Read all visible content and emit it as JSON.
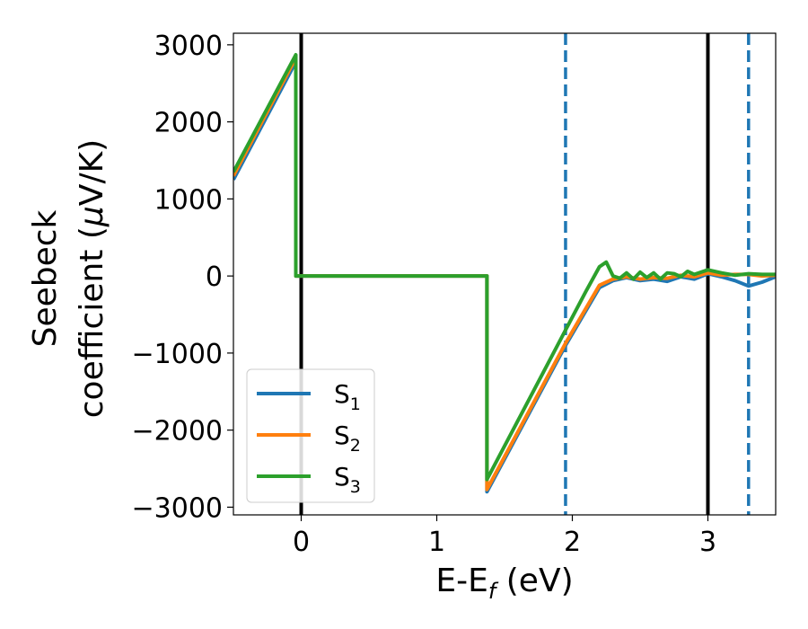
{
  "chart_data": {
    "type": "line",
    "xlabel": "E-E",
    "xlabel_sub": "f",
    "xlabel_unit": " (eV)",
    "ylabel_line1": "Seebeck",
    "ylabel_line2": "coefficient  (",
    "ylabel_mu": "μ",
    "ylabel_unit": "V/K)",
    "xlim": [
      -0.5,
      3.5
    ],
    "ylim": [
      -3100,
      3150
    ],
    "xticks": [
      0,
      1,
      2,
      3
    ],
    "xtick_labels": [
      "0",
      "1",
      "2",
      "3"
    ],
    "yticks": [
      3000,
      2000,
      1000,
      0,
      -1000,
      -2000,
      -3000
    ],
    "ytick_labels": [
      "3000",
      "2000",
      "1000",
      "0",
      "−1000",
      "−2000",
      "−3000"
    ],
    "grid": false,
    "legend_position": "lower-left",
    "vertical_lines": [
      {
        "x": 0.0,
        "style": "solid",
        "color": "#000000"
      },
      {
        "x": 3.0,
        "style": "solid",
        "color": "#000000"
      },
      {
        "x": 1.95,
        "style": "dashed",
        "color": "#1f77b4"
      },
      {
        "x": 3.3,
        "style": "dashed",
        "color": "#1f77b4"
      }
    ],
    "series": [
      {
        "name": "S",
        "sub": "1",
        "color": "#1f77b4",
        "points": [
          [
            -0.5,
            1250
          ],
          [
            -0.04,
            2780
          ],
          [
            -0.04,
            0
          ],
          [
            1.37,
            0
          ],
          [
            1.37,
            -2800
          ],
          [
            1.95,
            -900
          ],
          [
            2.2,
            -150
          ],
          [
            2.3,
            -60
          ],
          [
            2.4,
            -20
          ],
          [
            2.5,
            -60
          ],
          [
            2.6,
            -40
          ],
          [
            2.7,
            -70
          ],
          [
            2.8,
            -10
          ],
          [
            2.9,
            -40
          ],
          [
            3.0,
            30
          ],
          [
            3.1,
            -10
          ],
          [
            3.2,
            -60
          ],
          [
            3.3,
            -130
          ],
          [
            3.4,
            -80
          ],
          [
            3.5,
            -10
          ]
        ]
      },
      {
        "name": "S",
        "sub": "2",
        "color": "#ff7f0e",
        "points": [
          [
            -0.5,
            1300
          ],
          [
            -0.04,
            2830
          ],
          [
            -0.04,
            0
          ],
          [
            1.37,
            0
          ],
          [
            1.37,
            -2770
          ],
          [
            1.95,
            -870
          ],
          [
            2.2,
            -120
          ],
          [
            2.3,
            -40
          ],
          [
            2.4,
            -10
          ],
          [
            2.5,
            -40
          ],
          [
            2.6,
            -20
          ],
          [
            2.7,
            -30
          ],
          [
            2.8,
            10
          ],
          [
            2.9,
            -10
          ],
          [
            3.0,
            40
          ],
          [
            3.1,
            10
          ],
          [
            3.2,
            20
          ],
          [
            3.3,
            20
          ],
          [
            3.4,
            0
          ],
          [
            3.5,
            10
          ]
        ]
      },
      {
        "name": "S",
        "sub": "3",
        "color": "#2ca02c",
        "points": [
          [
            -0.5,
            1350
          ],
          [
            -0.04,
            2870
          ],
          [
            -0.04,
            0
          ],
          [
            1.37,
            0
          ],
          [
            1.37,
            -2640
          ],
          [
            1.95,
            -700
          ],
          [
            2.1,
            -200
          ],
          [
            2.2,
            120
          ],
          [
            2.25,
            180
          ],
          [
            2.3,
            0
          ],
          [
            2.35,
            -30
          ],
          [
            2.4,
            40
          ],
          [
            2.45,
            -40
          ],
          [
            2.5,
            50
          ],
          [
            2.55,
            -20
          ],
          [
            2.6,
            40
          ],
          [
            2.65,
            -40
          ],
          [
            2.7,
            40
          ],
          [
            2.75,
            30
          ],
          [
            2.8,
            -10
          ],
          [
            2.85,
            60
          ],
          [
            2.9,
            20
          ],
          [
            3.0,
            80
          ],
          [
            3.1,
            40
          ],
          [
            3.2,
            10
          ],
          [
            3.3,
            30
          ],
          [
            3.4,
            20
          ],
          [
            3.5,
            20
          ]
        ]
      }
    ]
  }
}
